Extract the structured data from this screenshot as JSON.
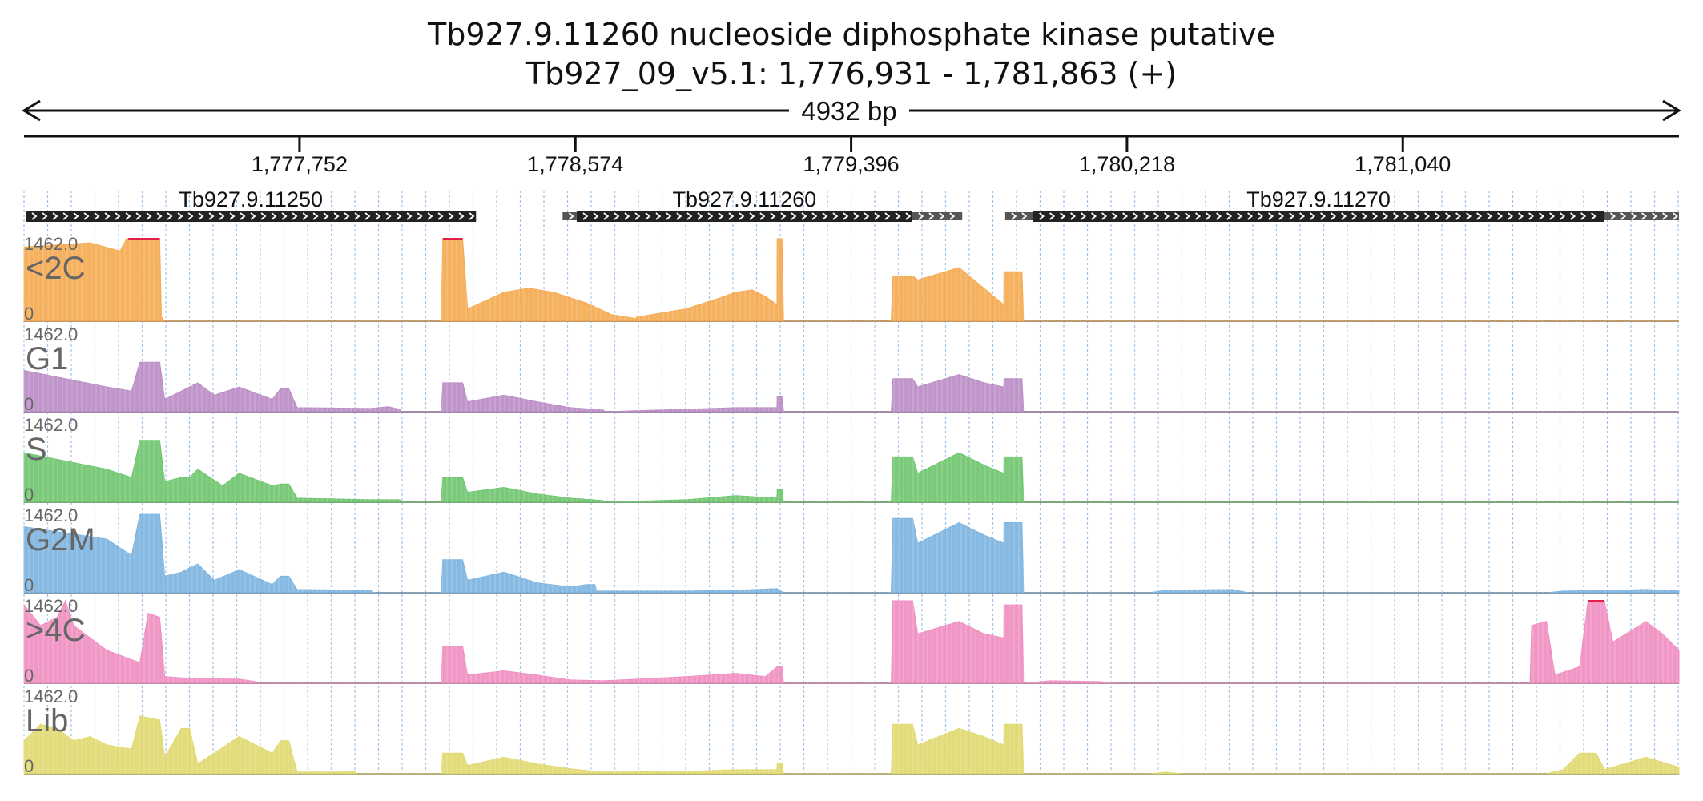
{
  "header": {
    "title": "Tb927.9.11260  nucleoside diphosphate kinase  putative",
    "locus": "Tb927_09_v5.1: 1,776,931 - 1,781,863 (+)",
    "span_label": "4932 bp"
  },
  "region": {
    "start": 1776931,
    "end": 1781863
  },
  "ruler": {
    "ticks": [
      {
        "pos": 1777752,
        "label": "1,777,752"
      },
      {
        "pos": 1778574,
        "label": "1,778,574"
      },
      {
        "pos": 1779396,
        "label": "1,779,396"
      },
      {
        "pos": 1780218,
        "label": "1,780,218"
      },
      {
        "pos": 1781040,
        "label": "1,781,040"
      }
    ]
  },
  "genes": [
    {
      "name": "Tb927.9.11250",
      "cds": [
        1776936,
        1778278
      ],
      "utr": []
    },
    {
      "name": "Tb927.9.11260",
      "cds": [
        1778578,
        1779578
      ],
      "utr": [
        [
          1778536,
          1778578
        ],
        [
          1779578,
          1779727
        ]
      ]
    },
    {
      "name": "Tb927.9.11270",
      "cds": [
        1779938,
        1781640
      ],
      "utr": [
        [
          1779855,
          1779938
        ],
        [
          1781640,
          1781863
        ]
      ]
    }
  ],
  "tracks": [
    {
      "name": "<2C",
      "max_label": "1462.0",
      "min_label": "0",
      "color": "#f5a94e",
      "profile": [
        [
          0,
          0.9
        ],
        [
          0.04,
          0.95
        ],
        [
          0.058,
          0.85
        ],
        [
          0.062,
          1
        ],
        [
          0.082,
          1
        ],
        [
          0.083,
          0.05
        ],
        [
          0.085,
          0
        ],
        [
          0.252,
          0
        ],
        [
          0.253,
          1
        ],
        [
          0.265,
          1
        ],
        [
          0.268,
          0.15
        ],
        [
          0.29,
          0.35
        ],
        [
          0.305,
          0.4
        ],
        [
          0.32,
          0.35
        ],
        [
          0.34,
          0.22
        ],
        [
          0.355,
          0.08
        ],
        [
          0.37,
          0.03
        ],
        [
          0.372,
          0
        ],
        [
          0.37,
          0
        ],
        [
          0.37,
          0.05
        ],
        [
          0.4,
          0.15
        ],
        [
          0.42,
          0.28
        ],
        [
          0.43,
          0.35
        ],
        [
          0.44,
          0.38
        ],
        [
          0.448,
          0.3
        ],
        [
          0.455,
          0.2
        ],
        [
          0.4551,
          1
        ],
        [
          0.458,
          1
        ],
        [
          0.459,
          0
        ],
        [
          0.524,
          0
        ],
        [
          0.525,
          0.55
        ],
        [
          0.537,
          0.55
        ],
        [
          0.54,
          0.5
        ],
        [
          0.565,
          0.65
        ],
        [
          0.58,
          0.4
        ],
        [
          0.592,
          0.2
        ],
        [
          0.5921,
          0.6
        ],
        [
          0.603,
          0.6
        ],
        [
          0.604,
          0
        ]
      ],
      "clip": [
        [
          0.063,
          0.082
        ],
        [
          0.253,
          0.265
        ]
      ]
    },
    {
      "name": "G1",
      "max_label": "1462.0",
      "min_label": "0",
      "color": "#b98ac4",
      "profile": [
        [
          0,
          0.5
        ],
        [
          0.05,
          0.3
        ],
        [
          0.065,
          0.25
        ],
        [
          0.07,
          0.6
        ],
        [
          0.082,
          0.6
        ],
        [
          0.085,
          0.15
        ],
        [
          0.095,
          0.25
        ],
        [
          0.1,
          0.3
        ],
        [
          0.105,
          0.35
        ],
        [
          0.115,
          0.2
        ],
        [
          0.13,
          0.3
        ],
        [
          0.15,
          0.15
        ],
        [
          0.155,
          0.28
        ],
        [
          0.16,
          0.28
        ],
        [
          0.165,
          0.05
        ],
        [
          0.21,
          0.04
        ],
        [
          0.22,
          0.06
        ],
        [
          0.22,
          0.06
        ],
        [
          0.227,
          0.03
        ],
        [
          0.228,
          0
        ],
        [
          0.252,
          0
        ],
        [
          0.253,
          0.35
        ],
        [
          0.265,
          0.35
        ],
        [
          0.268,
          0.12
        ],
        [
          0.29,
          0.2
        ],
        [
          0.31,
          0.12
        ],
        [
          0.33,
          0.05
        ],
        [
          0.35,
          0.02
        ],
        [
          0.351,
          0
        ],
        [
          0.4,
          0.03
        ],
        [
          0.43,
          0.05
        ],
        [
          0.455,
          0.05
        ],
        [
          0.4551,
          0.18
        ],
        [
          0.458,
          0.18
        ],
        [
          0.459,
          0
        ],
        [
          0.524,
          0
        ],
        [
          0.525,
          0.4
        ],
        [
          0.537,
          0.4
        ],
        [
          0.54,
          0.3
        ],
        [
          0.565,
          0.45
        ],
        [
          0.58,
          0.35
        ],
        [
          0.592,
          0.3
        ],
        [
          0.5921,
          0.4
        ],
        [
          0.603,
          0.4
        ],
        [
          0.604,
          0
        ]
      ],
      "clip": []
    },
    {
      "name": "S",
      "max_label": "1462.0",
      "min_label": "0",
      "color": "#6cc46c",
      "profile": [
        [
          0,
          0.6
        ],
        [
          0.05,
          0.4
        ],
        [
          0.065,
          0.3
        ],
        [
          0.07,
          0.75
        ],
        [
          0.082,
          0.75
        ],
        [
          0.085,
          0.25
        ],
        [
          0.095,
          0.3
        ],
        [
          0.1,
          0.3
        ],
        [
          0.105,
          0.4
        ],
        [
          0.12,
          0.2
        ],
        [
          0.13,
          0.35
        ],
        [
          0.15,
          0.2
        ],
        [
          0.155,
          0.22
        ],
        [
          0.16,
          0.22
        ],
        [
          0.165,
          0.05
        ],
        [
          0.21,
          0.03
        ],
        [
          0.227,
          0.03
        ],
        [
          0.228,
          0
        ],
        [
          0.252,
          0
        ],
        [
          0.253,
          0.3
        ],
        [
          0.265,
          0.3
        ],
        [
          0.268,
          0.12
        ],
        [
          0.29,
          0.18
        ],
        [
          0.31,
          0.1
        ],
        [
          0.33,
          0.05
        ],
        [
          0.35,
          0.02
        ],
        [
          0.351,
          0
        ],
        [
          0.4,
          0.03
        ],
        [
          0.43,
          0.08
        ],
        [
          0.455,
          0.05
        ],
        [
          0.4551,
          0.15
        ],
        [
          0.458,
          0.15
        ],
        [
          0.459,
          0
        ],
        [
          0.524,
          0
        ],
        [
          0.525,
          0.55
        ],
        [
          0.537,
          0.55
        ],
        [
          0.54,
          0.35
        ],
        [
          0.565,
          0.6
        ],
        [
          0.58,
          0.45
        ],
        [
          0.592,
          0.35
        ],
        [
          0.5921,
          0.55
        ],
        [
          0.603,
          0.55
        ],
        [
          0.604,
          0
        ]
      ],
      "clip": []
    },
    {
      "name": "G2M",
      "max_label": "1462.0",
      "min_label": "0",
      "color": "#7ab3e0",
      "profile": [
        [
          0,
          0.8
        ],
        [
          0.05,
          0.65
        ],
        [
          0.065,
          0.45
        ],
        [
          0.07,
          0.95
        ],
        [
          0.082,
          0.95
        ],
        [
          0.085,
          0.2
        ],
        [
          0.095,
          0.25
        ],
        [
          0.1,
          0.3
        ],
        [
          0.105,
          0.35
        ],
        [
          0.115,
          0.15
        ],
        [
          0.13,
          0.28
        ],
        [
          0.15,
          0.1
        ],
        [
          0.155,
          0.2
        ],
        [
          0.16,
          0.2
        ],
        [
          0.165,
          0.04
        ],
        [
          0.2,
          0.03
        ],
        [
          0.21,
          0.03
        ],
        [
          0.211,
          0
        ],
        [
          0.252,
          0
        ],
        [
          0.253,
          0.4
        ],
        [
          0.265,
          0.4
        ],
        [
          0.268,
          0.15
        ],
        [
          0.29,
          0.25
        ],
        [
          0.31,
          0.12
        ],
        [
          0.33,
          0.07
        ],
        [
          0.34,
          0.1
        ],
        [
          0.345,
          0.1
        ],
        [
          0.346,
          0.02
        ],
        [
          0.4,
          0.02
        ],
        [
          0.43,
          0.03
        ],
        [
          0.455,
          0.05
        ],
        [
          0.459,
          0
        ],
        [
          0.524,
          0
        ],
        [
          0.525,
          0.9
        ],
        [
          0.537,
          0.9
        ],
        [
          0.54,
          0.6
        ],
        [
          0.565,
          0.85
        ],
        [
          0.58,
          0.7
        ],
        [
          0.592,
          0.6
        ],
        [
          0.5921,
          0.85
        ],
        [
          0.603,
          0.85
        ],
        [
          0.604,
          0
        ],
        [
          0.68,
          0
        ],
        [
          0.69,
          0.03
        ],
        [
          0.73,
          0.04
        ],
        [
          0.74,
          0
        ],
        [
          0.92,
          0
        ],
        [
          0.93,
          0.02
        ],
        [
          0.96,
          0.03
        ],
        [
          0.98,
          0.04
        ],
        [
          1,
          0.02
        ]
      ],
      "clip": []
    },
    {
      "name": ">4C",
      "max_label": "1462.0",
      "min_label": "0",
      "color": "#f08cc0",
      "profile": [
        [
          0,
          0.95
        ],
        [
          0.01,
          0.7
        ],
        [
          0.02,
          0.8
        ],
        [
          0.025,
          1
        ],
        [
          0.03,
          0.7
        ],
        [
          0.05,
          0.4
        ],
        [
          0.07,
          0.25
        ],
        [
          0.075,
          0.85
        ],
        [
          0.082,
          0.8
        ],
        [
          0.085,
          0.08
        ],
        [
          0.1,
          0.06
        ],
        [
          0.13,
          0.05
        ],
        [
          0.14,
          0.02
        ],
        [
          0.141,
          0
        ],
        [
          0.252,
          0
        ],
        [
          0.253,
          0.45
        ],
        [
          0.265,
          0.45
        ],
        [
          0.268,
          0.1
        ],
        [
          0.29,
          0.15
        ],
        [
          0.31,
          0.1
        ],
        [
          0.33,
          0.04
        ],
        [
          0.35,
          0.03
        ],
        [
          0.4,
          0.08
        ],
        [
          0.43,
          0.12
        ],
        [
          0.448,
          0.08
        ],
        [
          0.4551,
          0.2
        ],
        [
          0.458,
          0.2
        ],
        [
          0.459,
          0
        ],
        [
          0.524,
          0
        ],
        [
          0.525,
          1
        ],
        [
          0.537,
          1
        ],
        [
          0.54,
          0.6
        ],
        [
          0.565,
          0.75
        ],
        [
          0.58,
          0.6
        ],
        [
          0.592,
          0.55
        ],
        [
          0.5921,
          0.95
        ],
        [
          0.603,
          0.95
        ],
        [
          0.604,
          0
        ],
        [
          0.62,
          0.03
        ],
        [
          0.65,
          0.02
        ],
        [
          0.66,
          0
        ],
        [
          0.91,
          0
        ],
        [
          0.911,
          0.7
        ],
        [
          0.92,
          0.75
        ],
        [
          0.925,
          0.1
        ],
        [
          0.94,
          0.2
        ],
        [
          0.945,
          1
        ],
        [
          0.955,
          1
        ],
        [
          0.96,
          0.5
        ],
        [
          0.98,
          0.75
        ],
        [
          0.99,
          0.6
        ],
        [
          1,
          0.4
        ]
      ],
      "clip": [
        [
          0.945,
          0.955
        ]
      ]
    },
    {
      "name": "Lib",
      "max_label": "1462.0",
      "min_label": "0",
      "color": "#e0d86c",
      "profile": [
        [
          0,
          0.4
        ],
        [
          0.01,
          0.6
        ],
        [
          0.02,
          0.55
        ],
        [
          0.03,
          0.4
        ],
        [
          0.04,
          0.45
        ],
        [
          0.05,
          0.35
        ],
        [
          0.065,
          0.3
        ],
        [
          0.07,
          0.7
        ],
        [
          0.082,
          0.65
        ],
        [
          0.085,
          0.2
        ],
        [
          0.095,
          0.55
        ],
        [
          0.1,
          0.55
        ],
        [
          0.105,
          0.12
        ],
        [
          0.13,
          0.45
        ],
        [
          0.15,
          0.25
        ],
        [
          0.155,
          0.4
        ],
        [
          0.16,
          0.4
        ],
        [
          0.165,
          0.02
        ],
        [
          0.19,
          0.02
        ],
        [
          0.2,
          0.03
        ],
        [
          0.201,
          0
        ],
        [
          0.252,
          0
        ],
        [
          0.253,
          0.25
        ],
        [
          0.265,
          0.25
        ],
        [
          0.268,
          0.1
        ],
        [
          0.29,
          0.2
        ],
        [
          0.31,
          0.12
        ],
        [
          0.33,
          0.06
        ],
        [
          0.35,
          0.02
        ],
        [
          0.4,
          0.03
        ],
        [
          0.43,
          0.05
        ],
        [
          0.455,
          0.05
        ],
        [
          0.4551,
          0.12
        ],
        [
          0.458,
          0.12
        ],
        [
          0.459,
          0
        ],
        [
          0.524,
          0
        ],
        [
          0.525,
          0.6
        ],
        [
          0.537,
          0.6
        ],
        [
          0.54,
          0.35
        ],
        [
          0.565,
          0.55
        ],
        [
          0.58,
          0.45
        ],
        [
          0.592,
          0.35
        ],
        [
          0.5921,
          0.6
        ],
        [
          0.603,
          0.6
        ],
        [
          0.604,
          0
        ],
        [
          0.68,
          0
        ],
        [
          0.69,
          0.02
        ],
        [
          0.7,
          0
        ],
        [
          0.92,
          0
        ],
        [
          0.93,
          0.05
        ],
        [
          0.94,
          0.25
        ],
        [
          0.95,
          0.25
        ],
        [
          0.955,
          0.05
        ],
        [
          0.98,
          0.2
        ],
        [
          1,
          0.08
        ]
      ],
      "clip": []
    }
  ],
  "colors": {
    "ink": "#111111",
    "grid": "#9cc3ea",
    "clip": "#e0204a",
    "label": "#666666",
    "axis": "#888888"
  }
}
